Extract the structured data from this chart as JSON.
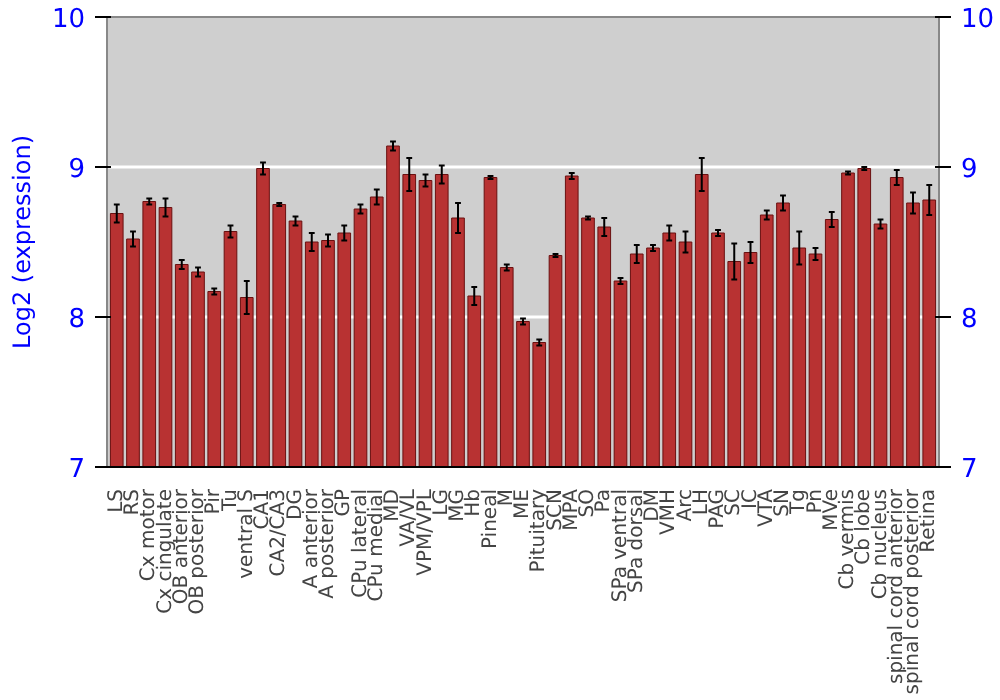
{
  "chart_data": {
    "type": "bar",
    "ylabel": "Log2 (expression)",
    "categories": [
      "LS",
      "RS",
      "Cx motor",
      "Cx cingulate",
      "OB anterior",
      "OB posterior",
      "Pir",
      "Tu",
      "ventral S",
      "CA1",
      "CA2/CA3",
      "DG",
      "A anterior",
      "A posterior",
      "GP",
      "CPu lateral",
      "CPu medial",
      "MD",
      "VA/VL",
      "VPM/VPL",
      "LG",
      "MG",
      "Hb",
      "Pineal",
      "M",
      "ME",
      "Pituitary",
      "SCN",
      "MPA",
      "SO",
      "Pa",
      "SPa ventral",
      "SPa dorsal",
      "DM",
      "VMH",
      "Arc",
      "LH",
      "PAG",
      "SC",
      "IC",
      "VTA",
      "SN",
      "Tg",
      "Pn",
      "MVe",
      "Cb vermis",
      "Cb lobe",
      "Cb nucleus",
      "spinal cord anterior",
      "spinal cord posterior",
      "Retina"
    ],
    "values": [
      8.69,
      8.52,
      8.77,
      8.73,
      8.35,
      8.3,
      8.17,
      8.57,
      8.13,
      8.99,
      8.75,
      8.64,
      8.5,
      8.51,
      8.56,
      8.72,
      8.8,
      9.14,
      8.95,
      8.91,
      8.95,
      8.66,
      8.14,
      8.93,
      8.33,
      7.97,
      7.83,
      8.41,
      8.94,
      8.66,
      8.6,
      8.24,
      8.42,
      8.46,
      8.56,
      8.5,
      8.95,
      8.56,
      8.37,
      8.43,
      8.68,
      8.76,
      8.46,
      8.42,
      8.65,
      8.96,
      8.99,
      8.62,
      8.93,
      8.76,
      8.78
    ],
    "errors": [
      0.06,
      0.05,
      0.02,
      0.06,
      0.03,
      0.03,
      0.02,
      0.04,
      0.11,
      0.04,
      0.01,
      0.03,
      0.06,
      0.04,
      0.05,
      0.03,
      0.05,
      0.03,
      0.11,
      0.04,
      0.06,
      0.1,
      0.06,
      0.01,
      0.02,
      0.02,
      0.02,
      0.01,
      0.02,
      0.01,
      0.06,
      0.02,
      0.06,
      0.02,
      0.05,
      0.07,
      0.11,
      0.02,
      0.12,
      0.07,
      0.03,
      0.05,
      0.11,
      0.04,
      0.05,
      0.01,
      0.01,
      0.03,
      0.05,
      0.07,
      0.1
    ],
    "color": "#b83232",
    "ylim": [
      7,
      10
    ],
    "yticks": [
      7,
      8,
      9,
      10
    ],
    "y2lim": [
      7,
      10
    ],
    "y2ticks": [
      7,
      8,
      9,
      10
    ],
    "grid": "y"
  }
}
